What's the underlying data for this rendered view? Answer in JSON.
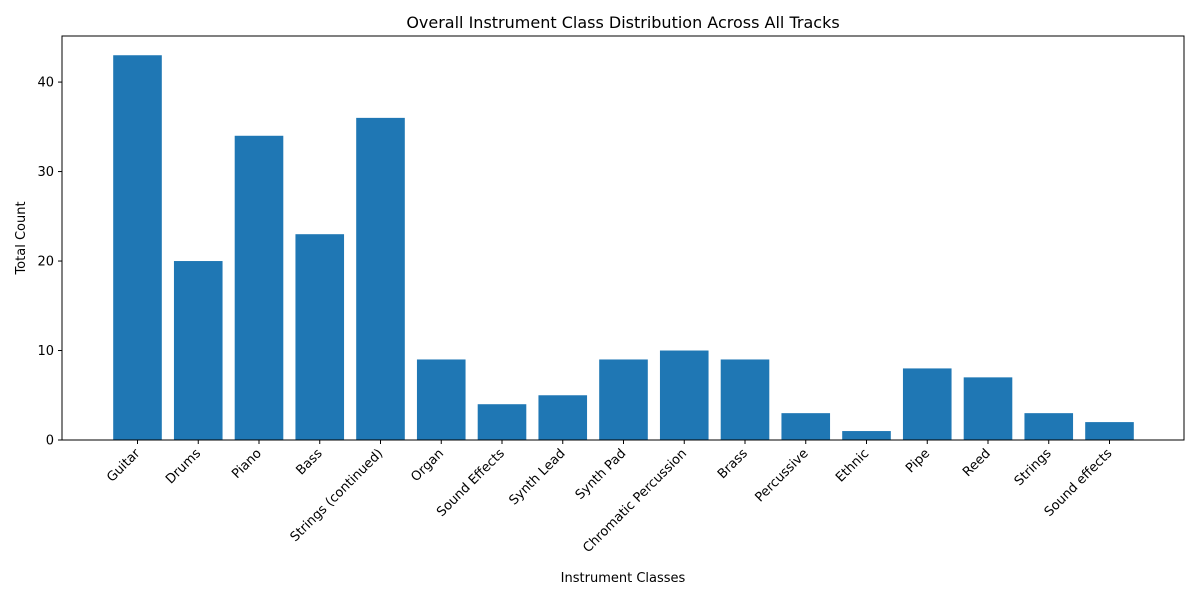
{
  "chart_data": {
    "type": "bar",
    "title": "Overall Instrument Class Distribution Across All Tracks",
    "xlabel": "Instrument Classes",
    "ylabel": "Total Count",
    "categories": [
      "Guitar",
      "Drums",
      "Piano",
      "Bass",
      "Strings (continued)",
      "Organ",
      "Sound Effects",
      "Synth Lead",
      "Synth Pad",
      "Chromatic Percussion",
      "Brass",
      "Percussive",
      "Ethnic",
      "Pipe",
      "Reed",
      "Strings",
      "Sound effects"
    ],
    "values": [
      43,
      20,
      34,
      23,
      36,
      9,
      4,
      5,
      9,
      10,
      9,
      3,
      1,
      8,
      7,
      3,
      2
    ],
    "ylim": [
      0,
      45.15
    ],
    "yticks": [
      0,
      10,
      20,
      30,
      40
    ],
    "grid": false,
    "bar_color": "#1f77b4"
  }
}
